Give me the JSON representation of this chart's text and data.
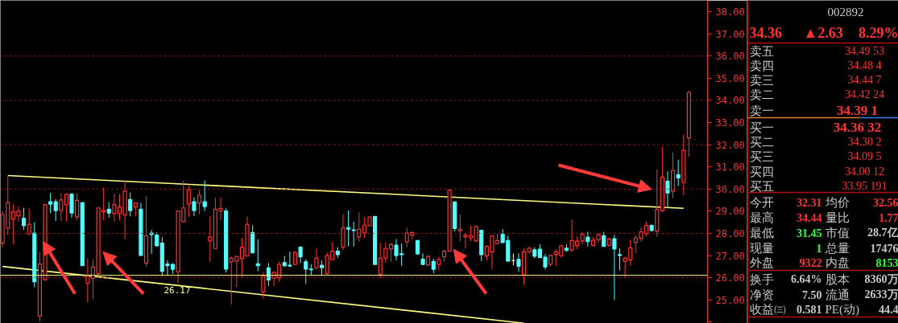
{
  "chart_data": [
    {
      "type": "candlestick",
      "categories": [
        null,
        null,
        null,
        null,
        null,
        null,
        null,
        null,
        null,
        null,
        null,
        null,
        null,
        null,
        null,
        null,
        null,
        null,
        null,
        null,
        null,
        null,
        null,
        null,
        null,
        null,
        null,
        null,
        null,
        null,
        null,
        null,
        null,
        null,
        null,
        null,
        null,
        null,
        null,
        null,
        null,
        null,
        null,
        null,
        null,
        null,
        null,
        null,
        null,
        null,
        null,
        null,
        null,
        null,
        null,
        null,
        null,
        null,
        null,
        null,
        null,
        null,
        null,
        null,
        null,
        null,
        null,
        null,
        null,
        null,
        null,
        null,
        null,
        null,
        null,
        null,
        null,
        null,
        null,
        null,
        null,
        null,
        null,
        null,
        null,
        null,
        null,
        null,
        null,
        null,
        null,
        null,
        null,
        null,
        null,
        null,
        null,
        null,
        null,
        null,
        null,
        null,
        null,
        null,
        null,
        null,
        null,
        null,
        null,
        null,
        null,
        null,
        null,
        null,
        null,
        null,
        null,
        null,
        null,
        null,
        null,
        null,
        null,
        null,
        null,
        null,
        null,
        null,
        null,
        null
      ],
      "ohlc": [
        [
          27.56,
          29.01,
          27.38,
          28.86
        ],
        [
          28.23,
          30.57,
          27.92,
          29.39
        ],
        [
          28.65,
          29.31,
          27.5,
          28.97
        ],
        [
          28.79,
          29.22,
          28.53,
          29.01
        ],
        [
          28.68,
          29.15,
          28.16,
          28.35
        ],
        [
          27.98,
          29.13,
          27.98,
          28.41
        ],
        [
          28.01,
          28.5,
          25.57,
          25.82
        ],
        [
          24.27,
          27.14,
          24.01,
          26.62
        ],
        [
          25.9,
          29.31,
          25.88,
          29.3
        ],
        [
          29.43,
          29.82,
          28.91,
          29.32
        ],
        [
          29.43,
          29.55,
          28.56,
          29.03
        ],
        [
          29.03,
          29.82,
          28.56,
          29.51
        ],
        [
          29.29,
          29.79,
          28.56,
          29.77
        ],
        [
          29.77,
          29.82,
          28.71,
          28.92
        ],
        [
          28.74,
          29.82,
          28.59,
          29.49
        ],
        [
          29.39,
          29.39,
          26.54,
          26.54
        ],
        [
          25.75,
          26.86,
          24.89,
          26.08
        ],
        [
          25.97,
          26.84,
          25.03,
          26.48
        ],
        [
          26.18,
          29.15,
          26.14,
          29.15
        ],
        [
          28.97,
          30.07,
          28.59,
          29.04
        ],
        [
          29.09,
          29.41,
          28.71,
          28.92
        ],
        [
          28.89,
          29.79,
          28.53,
          29.3
        ],
        [
          28.89,
          29.77,
          28.59,
          29.19
        ],
        [
          28.83,
          30.36,
          27.74,
          29.91
        ],
        [
          29.53,
          29.85,
          28.77,
          29.03
        ],
        [
          29.19,
          29.37,
          28.77,
          29.37
        ],
        [
          29.09,
          29.37,
          26.98,
          27.01
        ],
        [
          26.66,
          29.67,
          26.5,
          27.89
        ],
        [
          28.01,
          28.16,
          27.08,
          27.95
        ],
        [
          27.92,
          28.04,
          27.41,
          27.44
        ],
        [
          27.56,
          27.83,
          26.09,
          26.29
        ],
        [
          26.62,
          26.78,
          26.12,
          26.54
        ],
        [
          26.6,
          26.66,
          26.18,
          26.38
        ],
        [
          26.26,
          29.01,
          25.75,
          29.01
        ],
        [
          28.53,
          30.39,
          28.53,
          29.15
        ],
        [
          29.33,
          30.15,
          28.74,
          29.96
        ],
        [
          29.43,
          29.63,
          28.79,
          29.03
        ],
        [
          29.37,
          29.95,
          28.86,
          29.73
        ],
        [
          29.43,
          30.39,
          29.01,
          29.21
        ],
        [
          27.66,
          28.77,
          26.72,
          27.83
        ],
        [
          27.32,
          29.61,
          27.32,
          29.09
        ],
        [
          29.01,
          29.63,
          28.61,
          29.13
        ],
        [
          29.01,
          29.13,
          26.24,
          26.39
        ],
        [
          26.72,
          26.96,
          24.79,
          26.88
        ],
        [
          26.75,
          26.96,
          25.57,
          26.96
        ],
        [
          26.86,
          27.8,
          26.03,
          27.38
        ],
        [
          26.98,
          28.77,
          26.98,
          28.41
        ],
        [
          28.04,
          28.37,
          27.12,
          27.12
        ],
        [
          26.63,
          27.74,
          26.3,
          26.54
        ],
        [
          25.36,
          26.24,
          25.06,
          26.09
        ],
        [
          26.45,
          26.66,
          25.63,
          25.9
        ],
        [
          25.97,
          26.3,
          25.63,
          26.24
        ],
        [
          26.0,
          26.72,
          25.82,
          26.6
        ],
        [
          26.68,
          26.98,
          26.48,
          26.54
        ],
        [
          26.56,
          27.18,
          26.48,
          26.53
        ],
        [
          26.6,
          27.2,
          26.57,
          27.14
        ],
        [
          27.38,
          27.41,
          26.66,
          26.94
        ],
        [
          26.72,
          26.84,
          25.73,
          26.39
        ],
        [
          26.39,
          26.6,
          26.12,
          26.36
        ],
        [
          26.45,
          27.32,
          26.36,
          26.88
        ],
        [
          26.56,
          26.78,
          26.12,
          26.45
        ],
        [
          26.18,
          27.14,
          26.18,
          27.0
        ],
        [
          26.82,
          27.61,
          26.82,
          27.2
        ],
        [
          27.2,
          27.38,
          26.9,
          27.04
        ],
        [
          27.38,
          28.86,
          27.24,
          28.25
        ],
        [
          28.26,
          29.03,
          27.41,
          28.19
        ],
        [
          28.16,
          28.53,
          27.41,
          28.13
        ],
        [
          27.84,
          28.95,
          27.62,
          28.19
        ],
        [
          28.01,
          28.71,
          27.8,
          28.37
        ],
        [
          28.35,
          28.77,
          28.35,
          28.74
        ],
        [
          28.77,
          28.77,
          26.6,
          26.6
        ],
        [
          26.15,
          27.56,
          25.97,
          26.88
        ],
        [
          26.88,
          27.59,
          26.66,
          27.32
        ],
        [
          27.3,
          27.59,
          26.72,
          27.5
        ],
        [
          27.47,
          27.74,
          26.78,
          27.0
        ],
        [
          27.08,
          27.54,
          26.54,
          27.04
        ],
        [
          27.62,
          28.26,
          27.38,
          28.01
        ],
        [
          27.92,
          28.1,
          27.72,
          28.04
        ],
        [
          27.68,
          27.68,
          27.02,
          27.08
        ],
        [
          26.84,
          27.1,
          26.57,
          26.6
        ],
        [
          26.57,
          27.02,
          26.54,
          26.96
        ],
        [
          26.74,
          26.86,
          26.2,
          26.38
        ],
        [
          26.6,
          26.94,
          26.36,
          26.82
        ],
        [
          26.94,
          27.26,
          26.72,
          27.2
        ],
        [
          27.2,
          29.95,
          27.2,
          29.95
        ],
        [
          29.41,
          29.47,
          28.1,
          28.22
        ],
        [
          28.13,
          28.86,
          27.66,
          28.19
        ],
        [
          27.84,
          27.98,
          27.32,
          27.92
        ],
        [
          27.8,
          28.35,
          27.66,
          27.89
        ],
        [
          27.66,
          28.35,
          27.66,
          28.31
        ],
        [
          28.14,
          28.16,
          26.75,
          27.04
        ],
        [
          26.98,
          27.47,
          26.78,
          27.42
        ],
        [
          27.16,
          27.92,
          26.39,
          27.89
        ],
        [
          27.54,
          27.98,
          27.54,
          27.68
        ],
        [
          27.96,
          28.19,
          27.56,
          27.59
        ],
        [
          27.68,
          27.89,
          26.72,
          26.75
        ],
        [
          26.77,
          27.09,
          26.55,
          26.77
        ],
        [
          26.83,
          27.11,
          26.27,
          26.52
        ],
        [
          26.13,
          27.33,
          25.68,
          27.17
        ],
        [
          27.17,
          27.39,
          27.09,
          27.33
        ],
        [
          27.26,
          27.38,
          26.87,
          26.97
        ],
        [
          27.29,
          27.51,
          26.91,
          26.91
        ],
        [
          26.93,
          27.07,
          26.37,
          26.49
        ],
        [
          26.61,
          27.03,
          26.49,
          27.01
        ],
        [
          27.05,
          27.27,
          26.52,
          27.17
        ],
        [
          26.99,
          27.47,
          26.91,
          27.44
        ],
        [
          27.33,
          27.51,
          27.17,
          27.23
        ],
        [
          27.25,
          28.62,
          27.15,
          27.68
        ],
        [
          27.45,
          27.87,
          27.29,
          27.65
        ],
        [
          27.66,
          28.07,
          27.51,
          27.96
        ],
        [
          27.83,
          28.07,
          27.41,
          27.63
        ],
        [
          27.45,
          27.83,
          27.42,
          27.69
        ],
        [
          27.71,
          28.02,
          27.57,
          27.94
        ],
        [
          27.9,
          28.07,
          27.41,
          27.41
        ],
        [
          27.45,
          27.81,
          27.42,
          27.75
        ],
        [
          27.76,
          27.93,
          24.99,
          27.3
        ],
        [
          27.04,
          27.33,
          26.33,
          27.01
        ],
        [
          26.73,
          26.95,
          26.01,
          26.89
        ],
        [
          26.81,
          27.71,
          26.55,
          27.35
        ],
        [
          27.59,
          27.93,
          27.11,
          27.8
        ],
        [
          27.78,
          28.26,
          27.63,
          28.07
        ],
        [
          27.99,
          28.53,
          27.87,
          28.36
        ],
        [
          28.37,
          28.37,
          28.08,
          28.13
        ],
        [
          28.1,
          30.89,
          27.84,
          29.08
        ],
        [
          29.03,
          31.92,
          28.95,
          30.54
        ],
        [
          30.35,
          30.8,
          29.21,
          29.82
        ],
        [
          29.9,
          31.66,
          29.58,
          30.84
        ],
        [
          30.65,
          31.32,
          30.14,
          30.5
        ],
        [
          30.3,
          32.46,
          29.72,
          31.74
        ],
        [
          32.31,
          34.44,
          31.45,
          34.36
        ]
      ],
      "colors": [
        "#ff3232",
        "#ff3232",
        "#ff3232",
        "#ff3232",
        "#54fcfc",
        "#ff3232",
        "#54fcfc",
        "#ff3232",
        "#ff3232",
        "#54fcfc",
        "#54fcfc",
        "#ff3232",
        "#ff3232",
        "#54fcfc",
        "#ff3232",
        "#54fcfc",
        "#ff3232",
        "#ff3232",
        "#ff3232",
        "#ff3232",
        "#54fcfc",
        "#ff3232",
        "#ff3232",
        "#ff3232",
        "#54fcfc",
        "#ff3232",
        "#54fcfc",
        "#ff3232",
        "#54fcfc",
        "#54fcfc",
        "#54fcfc",
        "#54fcfc",
        "#54fcfc",
        "#ff3232",
        "#ff3232",
        "#ff3232",
        "#54fcfc",
        "#ff3232",
        "#54fcfc",
        "#ff3232",
        "#ff3232",
        "#ff3232",
        "#54fcfc",
        "#ff3232",
        "#ff3232",
        "#ff3232",
        "#ff3232",
        "#54fcfc",
        "#54fcfc",
        "#ff3232",
        "#54fcfc",
        "#ff3232",
        "#ff3232",
        "#54fcfc",
        "#54fcfc",
        "#ff3232",
        "#54fcfc",
        "#54fcfc",
        "#54fcfc",
        "#ff3232",
        "#54fcfc",
        "#ff3232",
        "#ff3232",
        "#54fcfc",
        "#ff3232",
        "#54fcfc",
        "#54fcfc",
        "#ff3232",
        "#ff3232",
        "#ff3232",
        "#54fcfc",
        "#ff3232",
        "#ff3232",
        "#ff3232",
        "#54fcfc",
        "#54fcfc",
        "#ff3232",
        "#ff3232",
        "#54fcfc",
        "#54fcfc",
        "#ff3232",
        "#54fcfc",
        "#ff3232",
        "#ff3232",
        "#ff3232",
        "#54fcfc",
        "#ff3232",
        "#ff3232",
        "#ff3232",
        "#ff3232",
        "#54fcfc",
        "#ff3232",
        "#ff3232",
        "#ff3232",
        "#54fcfc",
        "#54fcfc",
        "#ffffff",
        "#54fcfc",
        "#ff3232",
        "#ff3232",
        "#54fcfc",
        "#54fcfc",
        "#54fcfc",
        "#ff3232",
        "#ff3232",
        "#ff3232",
        "#54fcfc",
        "#ff3232",
        "#ff3232",
        "#ff3232",
        "#54fcfc",
        "#ff3232",
        "#ff3232",
        "#54fcfc",
        "#ff3232",
        "#54fcfc",
        "#54fcfc",
        "#ff3232",
        "#ff3232",
        "#ff3232",
        "#ff3232",
        "#ff3232",
        "#54fcfc",
        "#ff3232",
        "#ff3232",
        "#54fcfc",
        "#ff3232",
        "#54fcfc",
        "#ff3232",
        "#ff3232"
      ],
      "series": [
        {
          "type": "line",
          "color": "#ffff80",
          "values": [
            null,
            30.61,
            null,
            null,
            null,
            null,
            null,
            null,
            null,
            null,
            null,
            null,
            null,
            null,
            null,
            null,
            null,
            null,
            null,
            null,
            null,
            null,
            null,
            null,
            null,
            null,
            null,
            null,
            null,
            null,
            null,
            null,
            null,
            null,
            null,
            null,
            null,
            null,
            null,
            null,
            null,
            null,
            null,
            null,
            null,
            null,
            null,
            null,
            null,
            null,
            null,
            null,
            null,
            null,
            null,
            null,
            null,
            null,
            null,
            null,
            null,
            null,
            null,
            null,
            null,
            null,
            null,
            null,
            null,
            null,
            null,
            null,
            null,
            null,
            null,
            null,
            null,
            null,
            null,
            null,
            null,
            null,
            null,
            null,
            null,
            null,
            null,
            null,
            null,
            null,
            null,
            null,
            null,
            null,
            null,
            null,
            null,
            null,
            null,
            null,
            null,
            null,
            null,
            null,
            null,
            null,
            null,
            null,
            null,
            null,
            null,
            null,
            null,
            null,
            null,
            null,
            null,
            null,
            null,
            null,
            null,
            null,
            null,
            null,
            null,
            null,
            null,
            null,
            29.13,
            null
          ]
        },
        {
          "type": "line",
          "color": "#ffff80",
          "values": [
            26.51,
            null,
            null,
            null,
            null,
            null,
            null,
            null,
            null,
            null,
            null,
            null,
            null,
            null,
            null,
            null,
            null,
            null,
            null,
            null,
            null,
            null,
            null,
            null,
            null,
            null,
            null,
            null,
            null,
            null,
            null,
            null,
            null,
            null,
            null,
            null,
            null,
            null,
            null,
            null,
            null,
            null,
            null,
            null,
            null,
            null,
            null,
            null,
            null,
            null,
            null,
            null,
            null,
            null,
            null,
            null,
            null,
            null,
            null,
            null,
            null,
            null,
            null,
            null,
            null,
            null,
            null,
            null,
            null,
            null,
            null,
            null,
            null,
            null,
            null,
            null,
            null,
            null,
            null,
            null,
            null,
            null,
            null,
            null,
            null,
            null,
            null,
            null,
            null,
            null,
            null,
            null,
            null,
            null,
            null,
            null,
            null,
            null,
            23.95,
            null,
            null,
            null,
            null,
            null,
            null,
            null,
            null,
            null,
            null,
            null,
            null,
            null,
            null,
            null,
            null,
            null,
            null,
            null,
            null,
            null,
            null,
            null,
            null,
            null,
            null,
            null,
            null,
            null,
            null,
            null
          ]
        }
      ],
      "ref_lines": [
        {
          "axis": "y",
          "value": 26.11,
          "color": "#ffff80",
          "line_style": "solid"
        },
        {
          "axis": "y",
          "value": 26,
          "color": "#c01818",
          "line_style": "dotted"
        },
        {
          "axis": "y",
          "value": 28,
          "color": "#c01818",
          "line_style": "dotted"
        },
        {
          "axis": "y",
          "value": 30,
          "color": "#c01818",
          "line_style": "dotted"
        },
        {
          "axis": "y",
          "value": 32,
          "color": "#c01818",
          "line_style": "dotted"
        },
        {
          "axis": "y",
          "value": 34,
          "color": "#c01818",
          "line_style": "dotted"
        },
        {
          "axis": "y",
          "value": 36,
          "color": "#c01818",
          "line_style": "dotted"
        }
      ],
      "annotations": [
        "26.17"
      ],
      "ylim": [
        23.94,
        38.51
      ],
      "yticks": [
        {
          "value": 24,
          "label": null
        },
        {
          "value": 25,
          "label": "25.00"
        },
        {
          "value": 26,
          "label": "26.00"
        },
        {
          "value": 27,
          "label": "27.00"
        },
        {
          "value": 28,
          "label": "28.00"
        },
        {
          "value": 29,
          "label": "29.00"
        },
        {
          "value": 30,
          "label": "30.00"
        },
        {
          "value": 31,
          "label": "31.00"
        },
        {
          "value": 32,
          "label": "32.00"
        },
        {
          "value": 33,
          "label": "33.00"
        },
        {
          "value": 34,
          "label": "34.00"
        },
        {
          "value": 35,
          "label": "35.00"
        },
        {
          "value": 36,
          "label": "36.00"
        },
        {
          "value": 37,
          "label": "37.00"
        },
        {
          "value": 38,
          "label": "38.00"
        }
      ],
      "tick_labels": "y"
    },
    {
      "type": "other",
      "annotations": [
        "002892",
        "34.36",
        "▲2.63",
        "8.29%",
        "卖五",
        "34.49",
        "53",
        "卖四",
        "34.48",
        "4",
        "卖三",
        "34.44",
        "7",
        "卖二",
        "34.42",
        "24",
        "卖一",
        "34.39",
        "1",
        "买一",
        "34.36",
        "32",
        "买二",
        "34.30",
        "2",
        "买三",
        "34.09",
        "5",
        "买四",
        "34.00",
        "12",
        "买五",
        "33.95",
        "191",
        "今开",
        "32.31",
        "均价",
        "32.56",
        "最高",
        "34.44",
        "量比",
        "1.77",
        "最低",
        "31.45",
        "市值",
        "28.7亿",
        "现量",
        "1",
        "总量",
        "17476",
        "外盘",
        "9322",
        "内盘",
        "8153",
        "换手",
        "6.64%",
        "股本",
        "8360万",
        "净资",
        "7.50",
        "流通",
        "2633万",
        "收益㈢",
        "0.581",
        "PE(动)",
        "44.4"
      ],
      "colors": [
        "#c8c8c8",
        "#ff3232",
        "#ff3232",
        "#ff3232",
        "#c8c8c8",
        "#ff3232",
        "#e0e000",
        "#c8c8c8",
        "#ff3232",
        "#e0e000",
        "#c8c8c8",
        "#ff3232",
        "#e0e000",
        "#c8c8c8",
        "#ff3232",
        "#e0e000",
        "#c8c8c8",
        "#ff3232",
        "#e0e000",
        "#c8c8c8",
        "#ff3232",
        "#e0e000",
        "#c8c8c8",
        "#ff3232",
        "#e0e000",
        "#c8c8c8",
        "#ff3232",
        "#e0e000",
        "#c8c8c8",
        "#ff3232",
        "#e0e000",
        "#c8c8c8",
        "#ff3232",
        "#e0e000",
        "#c8c8c8",
        "#ff3232",
        "#c8c8c8",
        "#ff3232",
        "#c8c8c8",
        "#ff3232",
        "#c8c8c8",
        "#ff3232",
        "#c8c8c8",
        "#33ff33",
        "#c8c8c8",
        "#c8c8c8",
        "#c8c8c8",
        "#33ff33",
        "#c8c8c8",
        "#c8c8c8",
        "#c8c8c8",
        "#ff3232",
        "#c8c8c8",
        "#33ff33",
        "#c8c8c8",
        "#c8c8c8",
        "#c8c8c8",
        "#c8c8c8",
        "#c8c8c8",
        "#c8c8c8",
        "#c8c8c8",
        "#c8c8c8",
        "#c8c8c8",
        "#c8c8c8",
        "#c8c8c8",
        "#c8c8c8"
      ]
    }
  ]
}
